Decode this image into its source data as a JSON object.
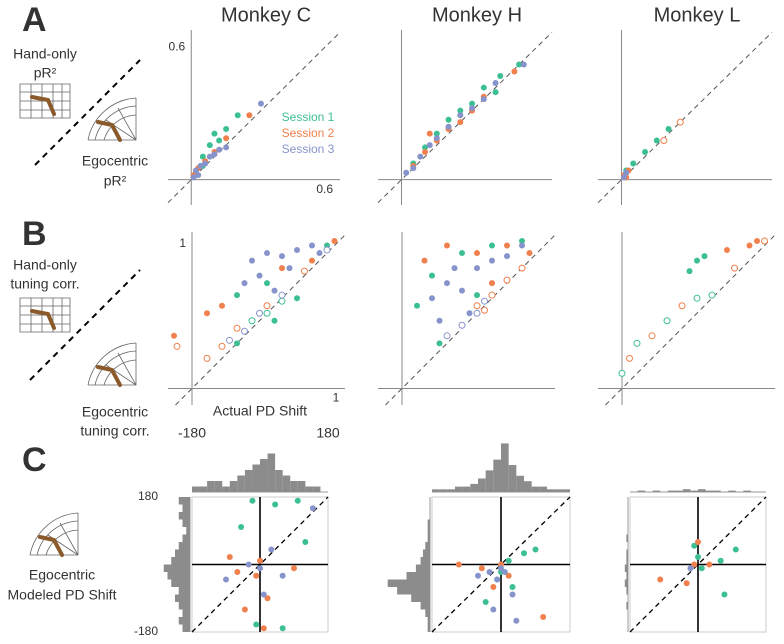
{
  "panel_labels": [
    "A",
    "B",
    "C"
  ],
  "row_labels": [
    {
      "y_label": [
        "Hand-only",
        "pR²"
      ],
      "x_label": [
        "Egocentric",
        "pR²"
      ]
    },
    {
      "y_label": [
        "Hand-only",
        "tuning corr."
      ],
      "x_label": [
        "Egocentric",
        "tuning corr."
      ]
    },
    {
      "y_label": [
        "Egocentric",
        "Modeled PD Shift"
      ]
    }
  ],
  "chart_data": [
    {
      "type": "scatter",
      "title": "Monkey C",
      "xlim": [
        -0.1,
        0.64
      ],
      "ylim": [
        -0.11,
        0.65
      ],
      "xticks": [
        0.6
      ],
      "yticks": [
        0.6
      ],
      "axes_at_zero": true,
      "diagonal": true,
      "legend": "right",
      "series": [
        {
          "name": "Session 1",
          "color": "#3dbf94",
          "x": [
            0.02,
            0.05,
            0.08,
            0.1,
            0.15,
            0.2,
            0.05,
            0.12
          ],
          "values": [
            0.03,
            0.1,
            0.15,
            0.2,
            0.22,
            0.28,
            0.06,
            0.17
          ]
        },
        {
          "name": "Session 2",
          "color": "#f0804d",
          "x": [
            0.01,
            0.03,
            0.06,
            0.1,
            0.25,
            0.15
          ],
          "values": [
            0.02,
            0.05,
            0.08,
            0.12,
            0.28,
            0.18
          ]
        },
        {
          "name": "Session 3",
          "color": "#8794cc",
          "x": [
            0.01,
            0.02,
            0.04,
            0.06,
            0.08,
            0.1,
            0.12,
            0.15,
            0.3,
            0.03
          ],
          "values": [
            0.01,
            0.04,
            0.06,
            0.07,
            0.1,
            0.11,
            0.13,
            0.14,
            0.33,
            0.02
          ]
        }
      ]
    },
    {
      "type": "scatter",
      "title": "Monkey H",
      "xlim": [
        -0.1,
        0.64
      ],
      "ylim": [
        -0.11,
        0.65
      ],
      "axes_at_zero": true,
      "diagonal": true,
      "series": [
        {
          "color": "#3dbf94",
          "x": [
            0.05,
            0.1,
            0.15,
            0.2,
            0.25,
            0.3,
            0.35,
            0.42,
            0.5,
            0.4
          ],
          "values": [
            0.07,
            0.14,
            0.2,
            0.26,
            0.3,
            0.33,
            0.4,
            0.45,
            0.5,
            0.38
          ]
        },
        {
          "color": "#f0804d",
          "x": [
            0.05,
            0.1,
            0.15,
            0.2,
            0.25,
            0.3,
            0.35,
            0.48,
            0.12
          ],
          "values": [
            0.06,
            0.12,
            0.17,
            0.22,
            0.25,
            0.3,
            0.36,
            0.47,
            0.2
          ]
        },
        {
          "color": "#8794cc",
          "x": [
            0.02,
            0.05,
            0.08,
            0.12,
            0.15,
            0.2,
            0.25,
            0.3,
            0.35,
            0.52,
            0.4
          ],
          "values": [
            0.03,
            0.05,
            0.1,
            0.15,
            0.18,
            0.23,
            0.28,
            0.31,
            0.35,
            0.5,
            0.42
          ]
        }
      ]
    },
    {
      "type": "scatter",
      "title": "Monkey L",
      "xlim": [
        -0.1,
        0.64
      ],
      "ylim": [
        -0.11,
        0.65
      ],
      "axes_at_zero": true,
      "diagonal": true,
      "series": [
        {
          "color": "#3dbf94",
          "x": [
            0.02,
            0.05,
            0.1,
            0.15,
            0.2
          ],
          "values": [
            0.04,
            0.07,
            0.12,
            0.17,
            0.22
          ]
        },
        {
          "color": "#f0804d",
          "x": [
            0.01,
            0.02,
            0.03
          ],
          "values": [
            0.02,
            0.01,
            0.04
          ]
        },
        {
          "color": "#8794cc",
          "x": [
            0.01,
            0.02
          ],
          "values": [
            0.01,
            0.03
          ]
        },
        {
          "color": "#f0804d",
          "hollow": true,
          "x": [
            0.25,
            0.18
          ],
          "values": [
            0.25,
            0.17
          ]
        }
      ]
    },
    {
      "type": "scatter",
      "xlim": [
        -0.16,
        1.02
      ],
      "ylim": [
        -0.11,
        1.04
      ],
      "xticks": [
        1
      ],
      "yticks": [
        1
      ],
      "axes_at_zero": true,
      "diagonal": true,
      "series": [
        {
          "color": "#3dbf94",
          "x": [
            0.3,
            0.5,
            0.55,
            0.9,
            0.3,
            0.7
          ],
          "values": [
            0.62,
            0.7,
            0.45,
            0.95,
            0.3,
            0.6
          ]
        },
        {
          "color": "#f0804d",
          "x": [
            0.1,
            0.2,
            0.6,
            0.8,
            0.95,
            -0.12
          ],
          "values": [
            0.5,
            0.55,
            0.8,
            0.85,
            0.98,
            0.35
          ]
        },
        {
          "color": "#8794cc",
          "x": [
            0.4,
            0.5,
            0.6,
            0.7,
            0.8,
            0.45,
            0.55,
            0.65,
            0.85,
            0.35
          ],
          "values": [
            0.85,
            0.9,
            0.88,
            0.92,
            0.95,
            0.75,
            0.65,
            0.8,
            0.9,
            0.7
          ]
        },
        {
          "color": "#3dbf94",
          "hollow": true,
          "x": [
            0.4,
            0.6,
            0.5
          ],
          "values": [
            0.45,
            0.58,
            0.5
          ]
        },
        {
          "color": "#f0804d",
          "hollow": true,
          "x": [
            -0.1,
            0.1,
            0.2,
            0.3,
            0.5,
            0.75
          ],
          "values": [
            0.28,
            0.2,
            0.28,
            0.4,
            0.55,
            0.78
          ]
        },
        {
          "color": "#8794cc",
          "hollow": true,
          "x": [
            0.25,
            0.35,
            0.45,
            0.6,
            0.9
          ],
          "values": [
            0.32,
            0.38,
            0.5,
            0.62,
            0.92
          ]
        }
      ]
    },
    {
      "type": "scatter",
      "xlim": [
        -0.16,
        1.02
      ],
      "ylim": [
        -0.11,
        1.04
      ],
      "axes_at_zero": true,
      "diagonal": true,
      "series": [
        {
          "color": "#3dbf94",
          "x": [
            0.1,
            0.2,
            0.4,
            0.6,
            0.8,
            0.25,
            0.5
          ],
          "values": [
            0.55,
            0.75,
            0.9,
            0.95,
            0.98,
            0.3,
            0.62
          ]
        },
        {
          "color": "#f0804d",
          "x": [
            0.15,
            0.3,
            0.5,
            0.7,
            0.85,
            0.6
          ],
          "values": [
            0.85,
            0.95,
            0.9,
            0.95,
            0.9,
            0.7
          ]
        },
        {
          "color": "#8794cc",
          "x": [
            0.2,
            0.3,
            0.4,
            0.5,
            0.6,
            0.7,
            0.45,
            0.25,
            0.35,
            0.8
          ],
          "values": [
            0.6,
            0.7,
            0.65,
            0.8,
            0.85,
            0.88,
            0.5,
            0.45,
            0.8,
            0.95
          ]
        },
        {
          "color": "#f0804d",
          "hollow": true,
          "x": [
            0.5,
            0.6,
            0.7,
            0.8,
            0.55
          ],
          "values": [
            0.55,
            0.62,
            0.72,
            0.8,
            0.52
          ]
        },
        {
          "color": "#8794cc",
          "hollow": true,
          "x": [
            0.3,
            0.4,
            0.5,
            0.55
          ],
          "values": [
            0.35,
            0.42,
            0.5,
            0.58
          ]
        }
      ]
    },
    {
      "type": "scatter",
      "xlim": [
        -0.16,
        1.02
      ],
      "ylim": [
        -0.11,
        1.04
      ],
      "axes_at_zero": true,
      "diagonal": true,
      "series": [
        {
          "color": "#3dbf94",
          "x": [
            0.5,
            0.55,
            0.45
          ],
          "values": [
            0.85,
            0.88,
            0.78
          ]
        },
        {
          "color": "#f0804d",
          "x": [
            0.85,
            0.9,
            0.7
          ],
          "values": [
            0.95,
            0.98,
            0.92
          ]
        },
        {
          "color": "#3dbf94",
          "hollow": true,
          "x": [
            0,
            0.1,
            0.3,
            0.5,
            0.6
          ],
          "values": [
            0.1,
            0.3,
            0.45,
            0.6,
            0.62
          ]
        },
        {
          "color": "#f0804d",
          "hollow": true,
          "x": [
            0.05,
            0.2,
            0.4,
            0.75,
            0.95
          ],
          "values": [
            0.2,
            0.35,
            0.55,
            0.8,
            0.98
          ]
        }
      ]
    },
    {
      "type": "scatter",
      "xlim": [
        -180,
        180
      ],
      "ylim": [
        -180,
        180
      ],
      "yticks": [
        180,
        -180
      ],
      "axes_at_zero": true,
      "diagonal": true,
      "frame": true,
      "series": [
        {
          "color": "#3dbf94",
          "x": [
            -20,
            40,
            100,
            60,
            -10,
            120,
            -50
          ],
          "values": [
            170,
            160,
            170,
            -170,
            -160,
            60,
            100
          ]
        },
        {
          "color": "#f0804d",
          "x": [
            -60,
            -10,
            0,
            20,
            -40,
            10,
            -80,
            90
          ],
          "values": [
            -20,
            -30,
            10,
            -90,
            -120,
            -170,
            20,
            -10
          ]
        },
        {
          "color": "#8794cc",
          "x": [
            -30,
            0,
            30,
            10,
            -90,
            60,
            140
          ],
          "values": [
            0,
            -10,
            40,
            -80,
            -40,
            -30,
            150
          ]
        }
      ]
    },
    {
      "type": "scatter",
      "xlim": [
        -180,
        180
      ],
      "ylim": [
        -180,
        180
      ],
      "axes_at_zero": true,
      "diagonal": true,
      "frame": true,
      "series": [
        {
          "color": "#3dbf94",
          "x": [
            0,
            20,
            -10,
            60,
            90,
            -40,
            30
          ],
          "values": [
            -20,
            10,
            -40,
            30,
            40,
            -100,
            -60
          ]
        },
        {
          "color": "#f0804d",
          "x": [
            -50,
            0,
            20,
            -20,
            110,
            -110
          ],
          "values": [
            -10,
            0,
            -30,
            -60,
            -140,
            0
          ]
        },
        {
          "color": "#8794cc",
          "x": [
            -30,
            -10,
            10,
            30,
            -20,
            -60,
            40,
            0
          ],
          "values": [
            -20,
            -40,
            -20,
            -80,
            -120,
            -30,
            -150,
            -10
          ]
        }
      ]
    },
    {
      "type": "scatter",
      "xlim": [
        -180,
        180
      ],
      "ylim": [
        -180,
        180
      ],
      "axes_at_zero": true,
      "diagonal": true,
      "frame": true,
      "series": [
        {
          "color": "#3dbf94",
          "x": [
            0,
            10,
            60,
            100,
            70,
            -10
          ],
          "values": [
            20,
            -10,
            10,
            40,
            -80,
            50
          ]
        },
        {
          "color": "#f0804d",
          "x": [
            -10,
            0,
            30,
            -100,
            -30
          ],
          "values": [
            0,
            60,
            0,
            -40,
            -50
          ]
        },
        {
          "color": "#8794cc",
          "x": [
            -20
          ],
          "values": [
            -10
          ]
        }
      ]
    },
    {
      "type": "histogram",
      "orientation": "vertical",
      "title": "Actual PD Shift",
      "color": "#8c8c8c",
      "xlim": [
        -180,
        180
      ],
      "ylim": [
        0,
        8
      ],
      "xticks": [
        -180,
        180
      ],
      "bins": [
        -180,
        -160,
        -140,
        -120,
        -100,
        -80,
        -60,
        -40,
        -20,
        0,
        20,
        40,
        60,
        80,
        100,
        120,
        140,
        160,
        180
      ],
      "counts": [
        1,
        1,
        2,
        2,
        1,
        2,
        3,
        4,
        5,
        6,
        7,
        4,
        3,
        2,
        2,
        1,
        1,
        0
      ]
    },
    {
      "type": "histogram",
      "orientation": "vertical",
      "color": "#8c8c8c",
      "xlim": [
        -180,
        180
      ],
      "ylim": [
        0,
        20
      ],
      "bins": [
        -180,
        -160,
        -140,
        -120,
        -100,
        -80,
        -60,
        -40,
        -20,
        0,
        20,
        40,
        60,
        80,
        100,
        120,
        140,
        160,
        180
      ],
      "counts": [
        1,
        1,
        1,
        2,
        2,
        3,
        5,
        8,
        12,
        18,
        10,
        6,
        4,
        2,
        2,
        1,
        1,
        1
      ]
    },
    {
      "type": "histogram",
      "orientation": "vertical",
      "color": "#8c8c8c",
      "xlim": [
        -180,
        180
      ],
      "ylim": [
        0,
        10
      ],
      "bins": [
        -180,
        -160,
        -140,
        -120,
        -100,
        -80,
        -60,
        -40,
        -20,
        0,
        20,
        40,
        60,
        80,
        100,
        120,
        140,
        160,
        180
      ],
      "counts": [
        0,
        1,
        0,
        1,
        0,
        1,
        1,
        2,
        1,
        2,
        1,
        1,
        0,
        1,
        0,
        1,
        0,
        0
      ]
    },
    {
      "type": "histogram",
      "orientation": "horizontal",
      "color": "#8c8c8c",
      "ylim": [
        -180,
        180
      ],
      "xlim": [
        0,
        8
      ],
      "bins": [
        -180,
        -160,
        -140,
        -120,
        -100,
        -80,
        -60,
        -40,
        -20,
        0,
        20,
        40,
        60,
        80,
        100,
        120,
        140,
        160,
        180
      ],
      "counts": [
        2,
        3,
        2,
        3,
        4,
        3,
        5,
        6,
        7,
        5,
        4,
        3,
        2,
        1,
        2,
        3,
        2,
        3
      ]
    },
    {
      "type": "histogram",
      "orientation": "horizontal",
      "color": "#8c8c8c",
      "ylim": [
        -180,
        180
      ],
      "xlim": [
        0,
        20
      ],
      "bins": [
        -180,
        -160,
        -140,
        -120,
        -100,
        -80,
        -60,
        -40,
        -20,
        0,
        20,
        40,
        60,
        80,
        100,
        120,
        140,
        160,
        180
      ],
      "counts": [
        1,
        1,
        2,
        4,
        8,
        14,
        18,
        10,
        6,
        4,
        3,
        2,
        1,
        1,
        1,
        0,
        0,
        0
      ]
    },
    {
      "type": "histogram",
      "orientation": "horizontal",
      "color": "#8c8c8c",
      "ylim": [
        -180,
        180
      ],
      "xlim": [
        0,
        10
      ],
      "bins": [
        -180,
        -160,
        -140,
        -120,
        -100,
        -80,
        -60,
        -40,
        -20,
        0,
        20,
        40,
        60,
        80,
        100,
        120,
        140,
        160,
        180
      ],
      "counts": [
        0,
        0,
        0,
        1,
        0,
        1,
        2,
        1,
        2,
        1,
        1,
        0,
        1,
        0,
        0,
        0,
        0,
        0
      ]
    }
  ]
}
